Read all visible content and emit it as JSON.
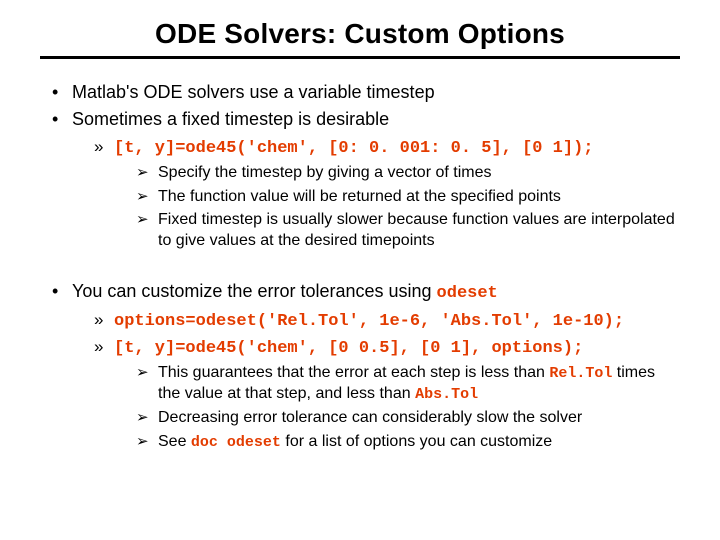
{
  "colors": {
    "accent": "#e33c00",
    "text": "#000000",
    "background": "#ffffff",
    "rule": "#000000"
  },
  "fonts": {
    "body_family": "Verdana",
    "mono_family": "Courier New",
    "title_size_pt": 28,
    "l1_size_pt": 18,
    "l2_size_pt": 17,
    "l3_size_pt": 16
  },
  "title": "ODE Solvers: Custom Options",
  "block_a": {
    "l1_a": "Matlab's ODE solvers use a variable timestep",
    "l1_b": "Sometimes a fixed timestep is desirable",
    "l2_code": "[t, y]=ode45('chem', [0: 0. 001: 0. 5], [0 1]);",
    "l3_a": "Specify the timestep by giving a vector of times",
    "l3_b": "The function value will be returned at the specified points",
    "l3_c": "Fixed timestep is usually slower because function values are interpolated to give values at the desired timepoints"
  },
  "block_b": {
    "l1_pre": "You can customize the error tolerances using ",
    "l1_kw": "odeset",
    "l2_code_a": "options=odeset('Rel.Tol', 1e-6, 'Abs.Tol', 1e-10);",
    "l2_code_b": "[t, y]=ode45('chem', [0 0.5], [0 1], options);",
    "l3_a_pre": "This guarantees that the error at each step is less than ",
    "l3_a_kw1": "Rel.Tol",
    "l3_a_mid": " times the value at that step, and less than ",
    "l3_a_kw2": "Abs.Tol",
    "l3_b": "Decreasing error tolerance can considerably slow the solver",
    "l3_c_pre": "See ",
    "l3_c_kw": "doc odeset",
    "l3_c_post": " for a list of options you can customize"
  }
}
